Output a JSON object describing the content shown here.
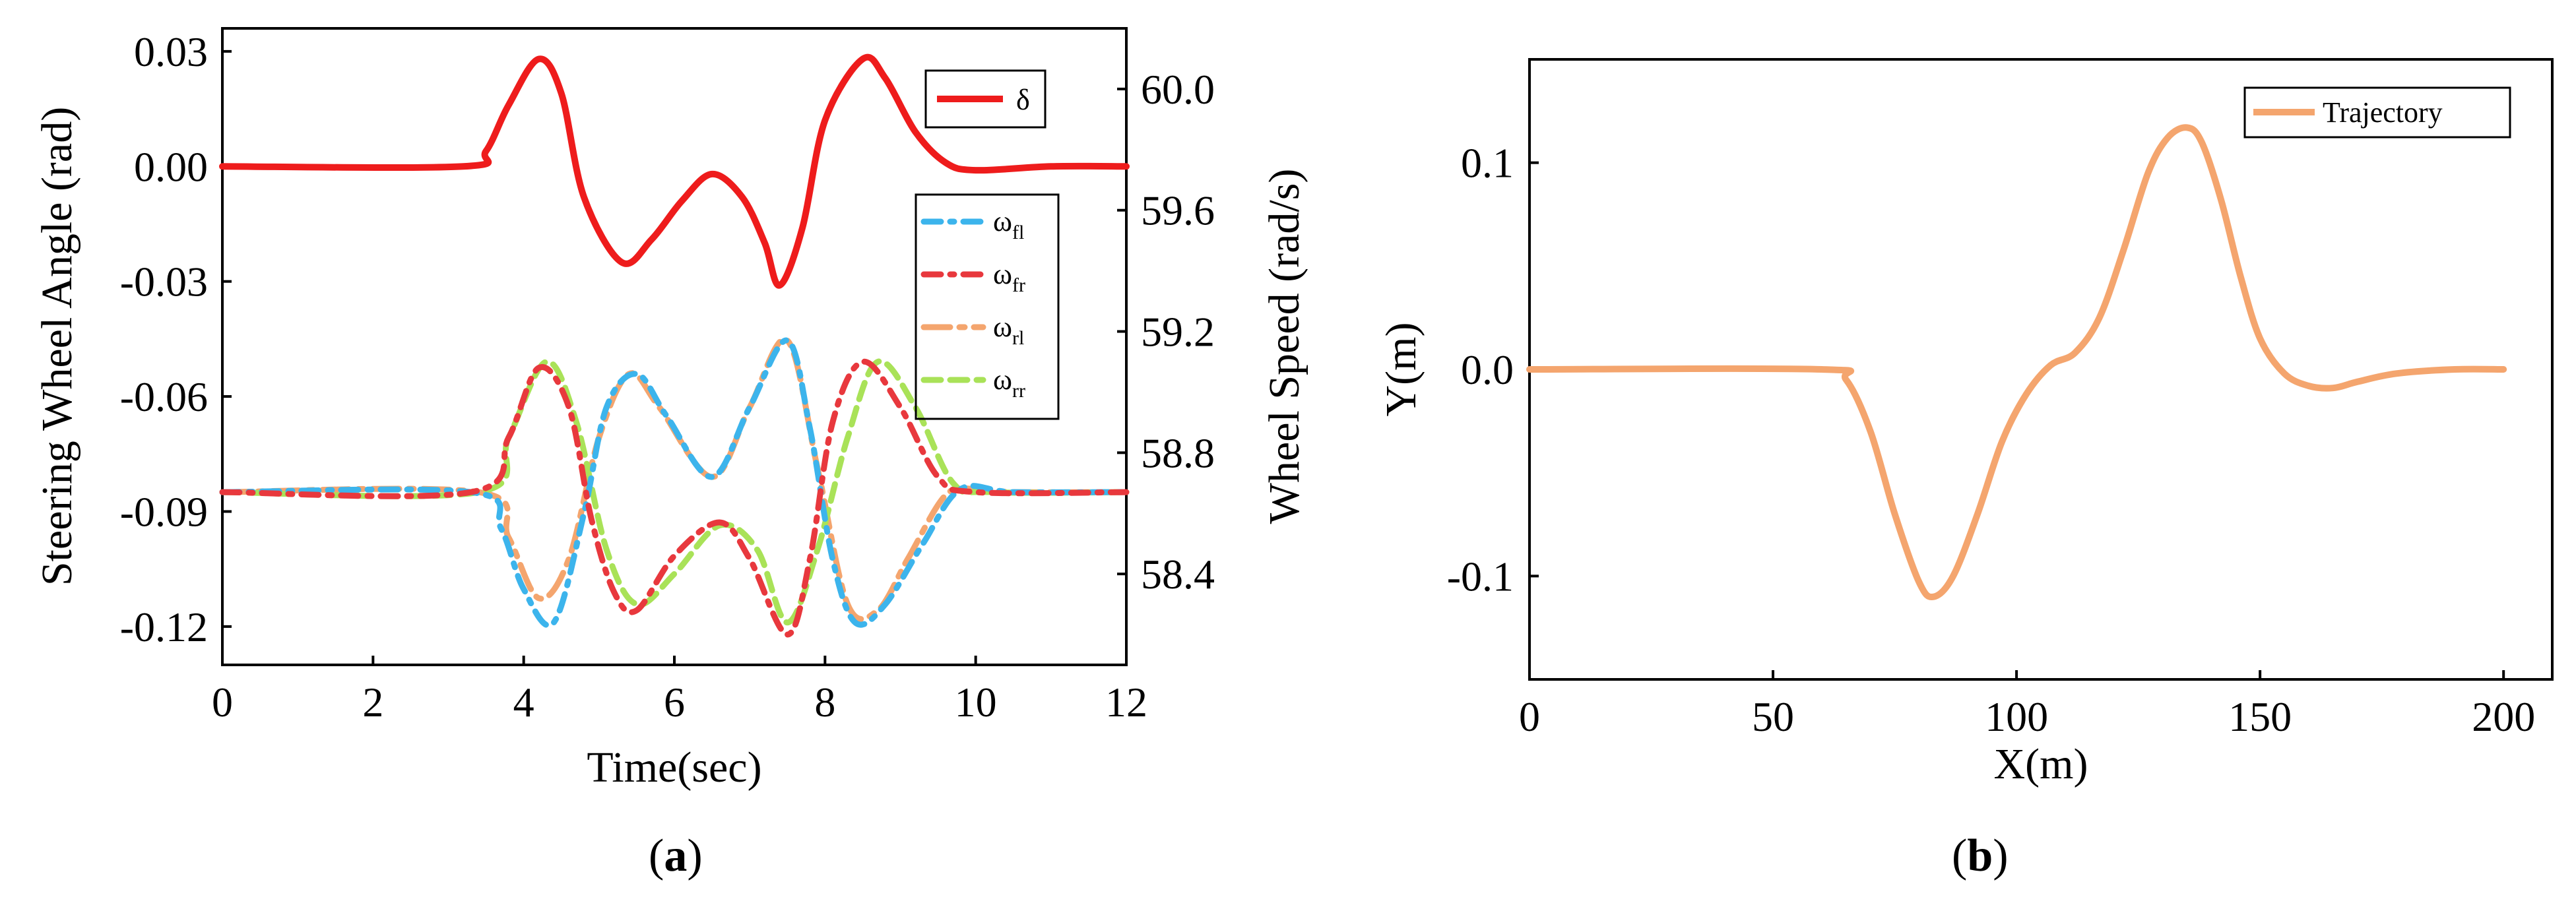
{
  "chart_data": [
    {
      "type": "line",
      "panel_label_bold": "a",
      "xlabel": "Time(sec)",
      "ylabel": "Steering Wheel Angle (rad)",
      "y2label": "Wheel Speed (rad/s)",
      "xlim": [
        0,
        12
      ],
      "ylim": [
        -0.13,
        0.036
      ],
      "y2lim": [
        58.1,
        60.2
      ],
      "xticks": [
        "0",
        "2",
        "4",
        "6",
        "8",
        "10",
        "12"
      ],
      "yticks": [
        "0.03",
        "0.00",
        "-0.03",
        "-0.06",
        "-0.09",
        "-0.12"
      ],
      "y2ticks": [
        "60.0",
        "59.6",
        "59.2",
        "58.8",
        "58.4"
      ],
      "legend_top": {
        "entries": [
          "δ"
        ],
        "position": "top-right"
      },
      "legend_wheels": {
        "entries": [
          "ω_fl",
          "ω_fr",
          "ω_rl",
          "ω_rr"
        ],
        "position": "right"
      },
      "series": [
        {
          "name": "δ",
          "axis": "left",
          "color": "#ee1c1c",
          "style": "solid",
          "points": [
            [
              0,
              0
            ],
            [
              3.2,
              0
            ],
            [
              3.5,
              0.004
            ],
            [
              3.8,
              0.016
            ],
            [
              4.2,
              0.028
            ],
            [
              4.5,
              0.019
            ],
            [
              4.8,
              -0.008
            ],
            [
              5.3,
              -0.025
            ],
            [
              5.7,
              -0.019
            ],
            [
              6.1,
              -0.009
            ],
            [
              6.5,
              -0.002
            ],
            [
              6.9,
              -0.008
            ],
            [
              7.2,
              -0.02
            ],
            [
              7.4,
              -0.031
            ],
            [
              7.7,
              -0.016
            ],
            [
              8.0,
              0.012
            ],
            [
              8.5,
              0.028
            ],
            [
              8.8,
              0.023
            ],
            [
              9.2,
              0.009
            ],
            [
              9.6,
              0.001
            ],
            [
              10.0,
              -0.001
            ],
            [
              11.0,
              0
            ],
            [
              12.0,
              0
            ]
          ]
        },
        {
          "name": "ω_fl",
          "axis": "right",
          "color": "#3cb4ec",
          "style": "dash-dot",
          "points": [
            [
              0,
              58.67
            ],
            [
              3.3,
              58.67
            ],
            [
              3.7,
              58.55
            ],
            [
              4.0,
              58.35
            ],
            [
              4.4,
              58.24
            ],
            [
              4.8,
              58.6
            ],
            [
              5.1,
              58.95
            ],
            [
              5.5,
              59.06
            ],
            [
              5.9,
              58.92
            ],
            [
              6.5,
              58.72
            ],
            [
              7.0,
              58.95
            ],
            [
              7.5,
              59.17
            ],
            [
              7.8,
              58.88
            ],
            [
              8.1,
              58.45
            ],
            [
              8.4,
              58.24
            ],
            [
              8.8,
              58.3
            ],
            [
              9.3,
              58.5
            ],
            [
              9.8,
              58.68
            ],
            [
              10.5,
              58.67
            ],
            [
              12,
              58.67
            ]
          ]
        },
        {
          "name": "ω_fr",
          "axis": "right",
          "color": "#e8383d",
          "style": "dash-dot",
          "points": [
            [
              0,
              58.67
            ],
            [
              3.3,
              58.67
            ],
            [
              3.8,
              58.85
            ],
            [
              4.2,
              59.08
            ],
            [
              4.6,
              58.95
            ],
            [
              4.9,
              58.58
            ],
            [
              5.2,
              58.34
            ],
            [
              5.5,
              58.28
            ],
            [
              6.0,
              58.46
            ],
            [
              6.6,
              58.57
            ],
            [
              7.0,
              58.45
            ],
            [
              7.5,
              58.2
            ],
            [
              7.8,
              58.45
            ],
            [
              8.1,
              58.9
            ],
            [
              8.5,
              59.1
            ],
            [
              9.0,
              58.95
            ],
            [
              9.5,
              58.72
            ],
            [
              10.0,
              58.67
            ],
            [
              12,
              58.67
            ]
          ]
        },
        {
          "name": "ω_rl",
          "axis": "right",
          "color": "#f4a56e",
          "style": "long-dash-dot",
          "points": [
            [
              0,
              58.67
            ],
            [
              3.4,
              58.67
            ],
            [
              3.8,
              58.52
            ],
            [
              4.2,
              58.32
            ],
            [
              4.6,
              58.45
            ],
            [
              5.0,
              58.85
            ],
            [
              5.4,
              59.06
            ],
            [
              5.8,
              58.95
            ],
            [
              6.5,
              58.72
            ],
            [
              7.0,
              58.95
            ],
            [
              7.5,
              59.17
            ],
            [
              7.9,
              58.75
            ],
            [
              8.3,
              58.3
            ],
            [
              8.7,
              58.28
            ],
            [
              9.1,
              58.45
            ],
            [
              9.6,
              58.66
            ],
            [
              10.0,
              58.68
            ],
            [
              10.5,
              58.67
            ],
            [
              12,
              58.67
            ]
          ]
        },
        {
          "name": "ω_rr",
          "axis": "right",
          "color": "#a9e258",
          "style": "dashed",
          "points": [
            [
              0,
              58.67
            ],
            [
              3.4,
              58.67
            ],
            [
              3.8,
              58.85
            ],
            [
              4.3,
              59.1
            ],
            [
              4.7,
              58.9
            ],
            [
              5.1,
              58.48
            ],
            [
              5.5,
              58.3
            ],
            [
              6.0,
              58.4
            ],
            [
              6.6,
              58.56
            ],
            [
              7.1,
              58.48
            ],
            [
              7.5,
              58.24
            ],
            [
              7.9,
              58.48
            ],
            [
              8.3,
              58.85
            ],
            [
              8.7,
              59.1
            ],
            [
              9.2,
              58.95
            ],
            [
              9.7,
              58.7
            ],
            [
              10.2,
              58.67
            ],
            [
              12,
              58.67
            ]
          ]
        }
      ]
    },
    {
      "type": "line",
      "panel_label_bold": "b",
      "xlabel": "X(m)",
      "ylabel": "Y(m)",
      "xlim": [
        0,
        210
      ],
      "ylim": [
        -0.15,
        0.15
      ],
      "xticks": [
        "0",
        "50",
        "100",
        "150",
        "200"
      ],
      "yticks": [
        "0.1",
        "0.0",
        "-0.1"
      ],
      "legend": {
        "entries": [
          "Trajectory"
        ],
        "position": "top-right"
      },
      "series": [
        {
          "name": "Trajectory",
          "color": "#f4a56e",
          "style": "solid",
          "points": [
            [
              0,
              0
            ],
            [
              60,
              0
            ],
            [
              65,
              -0.005
            ],
            [
              70,
              -0.03
            ],
            [
              75,
              -0.07
            ],
            [
              80,
              -0.103
            ],
            [
              83,
              -0.11
            ],
            [
              87,
              -0.1
            ],
            [
              92,
              -0.07
            ],
            [
              97,
              -0.035
            ],
            [
              102,
              -0.012
            ],
            [
              107,
              0.002
            ],
            [
              112,
              0.008
            ],
            [
              117,
              0.025
            ],
            [
              122,
              0.058
            ],
            [
              127,
              0.095
            ],
            [
              131,
              0.112
            ],
            [
              135,
              0.117
            ],
            [
              138,
              0.11
            ],
            [
              142,
              0.082
            ],
            [
              146,
              0.045
            ],
            [
              150,
              0.015
            ],
            [
              155,
              -0.002
            ],
            [
              160,
              -0.008
            ],
            [
              165,
              -0.009
            ],
            [
              170,
              -0.006
            ],
            [
              178,
              -0.002
            ],
            [
              190,
              0
            ],
            [
              200,
              0
            ]
          ]
        }
      ]
    }
  ]
}
